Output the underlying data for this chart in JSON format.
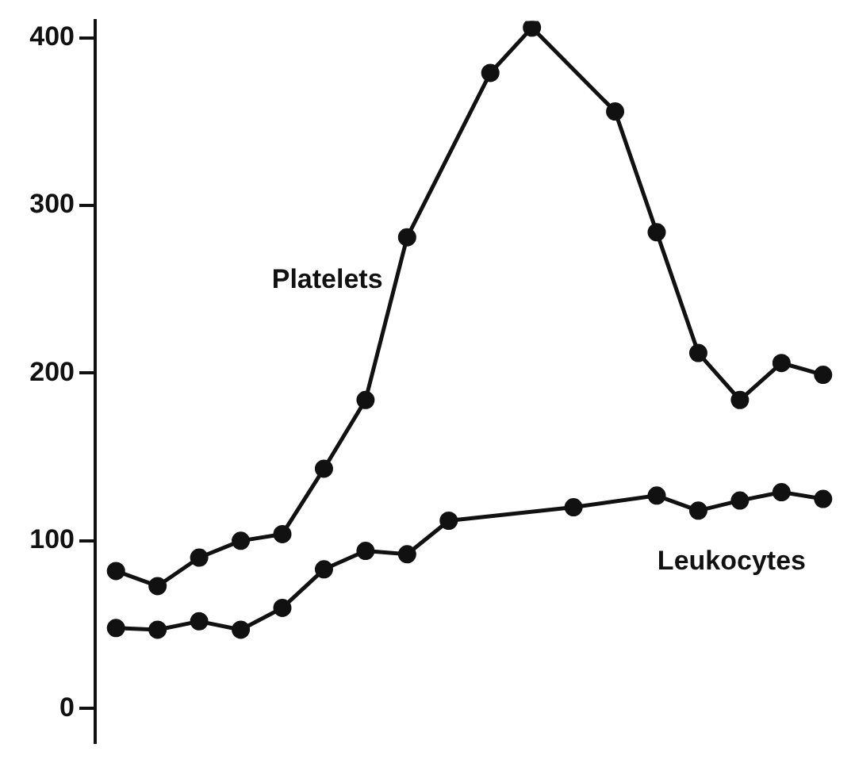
{
  "chart_data": {
    "type": "line",
    "categories": [
      null,
      null,
      null,
      null,
      null,
      null,
      null,
      null,
      null,
      null,
      null,
      null,
      null,
      null,
      null,
      null,
      null,
      null
    ],
    "ylim": [
      -20,
      410
    ],
    "yticks": [
      0,
      100,
      200,
      300,
      400
    ],
    "tick_labels": "y",
    "grid": false,
    "legend": false,
    "marker": "circle",
    "line_style": "solid",
    "series": [
      {
        "name": "Platelets",
        "color": "#111111",
        "values": [
          82,
          73,
          90,
          100,
          104,
          143,
          184,
          281,
          null,
          379,
          406,
          null,
          356,
          284,
          212,
          184,
          206,
          199
        ]
      },
      {
        "name": "Leukocytes",
        "color": "#111111",
        "values": [
          48,
          47,
          52,
          47,
          60,
          83,
          94,
          92,
          112,
          null,
          null,
          120,
          null,
          127,
          118,
          124,
          129,
          125
        ]
      }
    ]
  }
}
